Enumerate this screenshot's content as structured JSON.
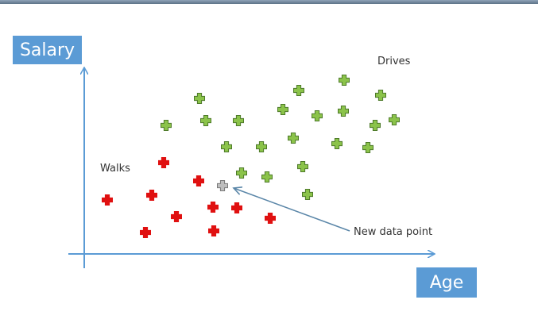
{
  "y_axis_label": "Salary",
  "x_axis_label": "Age",
  "class_labels": {
    "drives": "Drives",
    "walks": "Walks"
  },
  "annotation": "New data point",
  "colors": {
    "axis": "#5b9bd5",
    "label_box": "#5b9bd5",
    "walks_marker": "#e01010",
    "drives_marker": "#8bc34a",
    "drives_outline": "#4e7a2a",
    "new_point_marker": "#bdbdbd",
    "new_point_outline": "#7a7a7a",
    "arrow": "#5a86a8"
  },
  "marker_shape": "plus-cross",
  "chart_data": {
    "type": "scatter",
    "series": [
      {
        "name": "Walks",
        "points": [
          [
            135,
            252
          ],
          [
            206,
            205
          ],
          [
            191,
            246
          ],
          [
            250,
            228
          ],
          [
            222,
            273
          ],
          [
            268,
            261
          ],
          [
            298,
            262
          ],
          [
            340,
            275
          ],
          [
            183,
            293
          ],
          [
            269,
            291
          ]
        ]
      },
      {
        "name": "Drives",
        "points": [
          [
            433,
            101
          ],
          [
            376,
            114
          ],
          [
            479,
            120
          ],
          [
            251,
            124
          ],
          [
            356,
            138
          ],
          [
            399,
            146
          ],
          [
            432,
            140
          ],
          [
            472,
            158
          ],
          [
            496,
            151
          ],
          [
            209,
            158
          ],
          [
            259,
            152
          ],
          [
            300,
            152
          ],
          [
            369,
            174
          ],
          [
            424,
            181
          ],
          [
            463,
            186
          ],
          [
            285,
            185
          ],
          [
            329,
            185
          ],
          [
            381,
            210
          ],
          [
            304,
            218
          ],
          [
            336,
            223
          ],
          [
            387,
            245
          ]
        ]
      },
      {
        "name": "New data point",
        "points": [
          [
            280,
            234
          ]
        ]
      }
    ]
  }
}
